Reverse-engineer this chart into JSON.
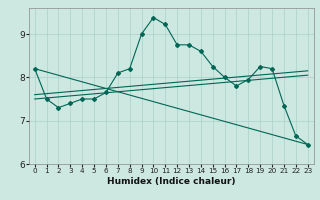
{
  "xlabel": "Humidex (Indice chaleur)",
  "bg_color": "#cce8e0",
  "grid_color": "#aad0c8",
  "line_color": "#006655",
  "xlim": [
    -0.5,
    23.5
  ],
  "ylim": [
    6.0,
    9.6
  ],
  "yticks": [
    6,
    7,
    8,
    9
  ],
  "xticks": [
    0,
    1,
    2,
    3,
    4,
    5,
    6,
    7,
    8,
    9,
    10,
    11,
    12,
    13,
    14,
    15,
    16,
    17,
    18,
    19,
    20,
    21,
    22,
    23
  ],
  "lines": [
    {
      "x": [
        0,
        1,
        2,
        3,
        4,
        5,
        6,
        7,
        8,
        9,
        10,
        11,
        12,
        13,
        14,
        15,
        16,
        17,
        18,
        19,
        20,
        21,
        22,
        23
      ],
      "y": [
        8.2,
        7.5,
        7.3,
        7.4,
        7.5,
        7.5,
        7.65,
        8.1,
        8.2,
        9.0,
        9.38,
        9.22,
        8.75,
        8.75,
        8.6,
        8.25,
        8.0,
        7.8,
        7.95,
        8.25,
        8.2,
        7.35,
        6.65,
        6.45
      ],
      "marker": true
    },
    {
      "x": [
        0,
        23
      ],
      "y": [
        8.2,
        6.45
      ],
      "marker": false
    },
    {
      "x": [
        0,
        23
      ],
      "y": [
        7.5,
        8.05
      ],
      "marker": false
    },
    {
      "x": [
        0,
        23
      ],
      "y": [
        7.6,
        8.15
      ],
      "marker": false
    }
  ]
}
